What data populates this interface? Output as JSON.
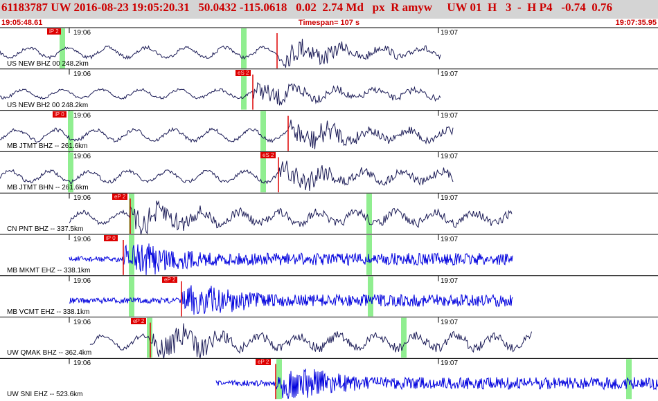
{
  "header": {
    "line": "61183787 UW 2016-08-23 19:05:20.31   50.0432 -115.0618   0.02  2.74 Md   px  R amyw     UW 01  H   3  -  H P4   -0.74  0.76",
    "start_time": "19:05:48.61",
    "timespan": "Timespan= 107 s",
    "end_time": "19:07:35.95"
  },
  "colors": {
    "header_bg": "#d4d4d4",
    "header_text": "#cc0000",
    "trace_short_period": "#0000dd",
    "trace_broadband": "#1a1a55",
    "pick": "#dd0000",
    "window": "#90ee90"
  },
  "tick_labels": {
    "t1": "19:06",
    "t2": "19:07"
  },
  "traces": [
    {
      "label": "US NEW BHZ 00 248.2km",
      "pick": "iP 2",
      "color": "broadband"
    },
    {
      "label": "US NEW BH2 00 248.2km",
      "pick": "eS 2",
      "color": "broadband"
    },
    {
      "label": "MB JTMT BHZ -- 261.6km",
      "pick": "iP 0",
      "color": "broadband"
    },
    {
      "label": "MB JTMT BHN -- 261.6km",
      "pick": "eS 2",
      "color": "broadband"
    },
    {
      "label": "CN PNT BHZ -- 337.5km",
      "pick": "eP 2",
      "color": "broadband"
    },
    {
      "label": "MB MKMT EHZ -- 338.1km",
      "pick": "iP 0",
      "color": "short_period"
    },
    {
      "label": "MB VCMT EHZ -- 338.1km",
      "pick": "eP 2",
      "color": "short_period"
    },
    {
      "label": "UW QMAK BHZ -- 362.4km",
      "pick": "eP 2",
      "color": "broadband"
    },
    {
      "label": "UW SNI EHZ -- 523.6km",
      "pick": "eP 2",
      "color": "short_period"
    }
  ]
}
